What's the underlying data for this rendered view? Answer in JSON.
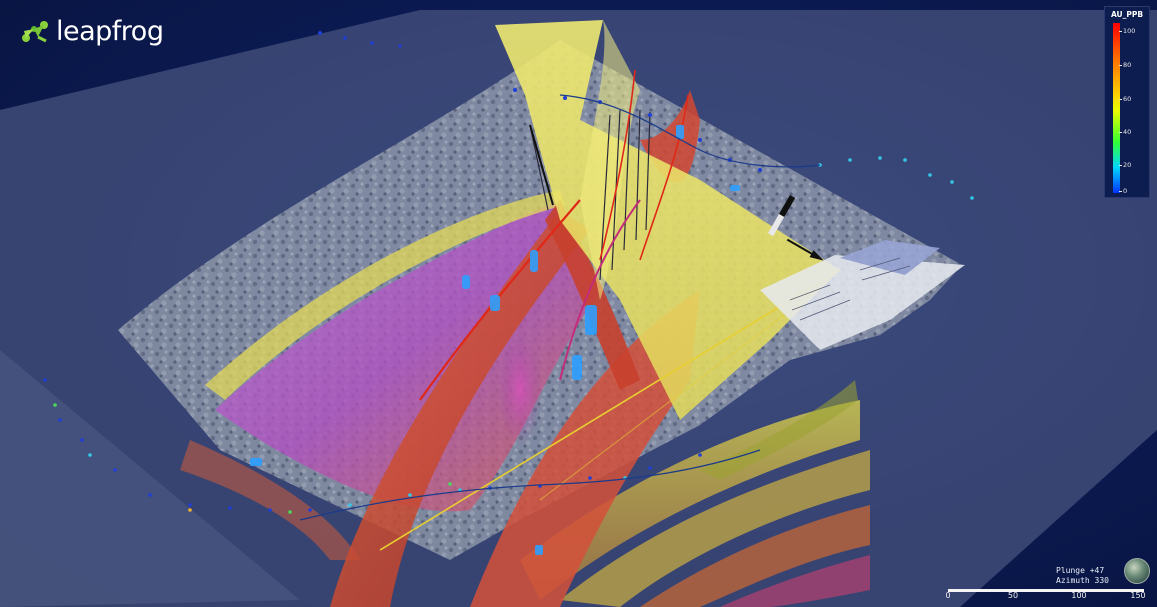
{
  "app": {
    "logo_text": "leapfrog"
  },
  "legend": {
    "title": "AU_PPB",
    "ticks": [
      "100",
      "80",
      "60",
      "40",
      "20",
      "0"
    ]
  },
  "view": {
    "plunge": "Plunge +47",
    "azimuth": "Azimuth 330"
  },
  "scale_bar": {
    "labels": [
      "0",
      "50",
      "100",
      "150"
    ]
  },
  "colors": {
    "background": "#0b1a52",
    "topo_surface": "#8d96a8",
    "fault_yellow": "#e6e15a",
    "fault_red": "#d24630",
    "vein_purple": "#a050c8",
    "drill_trace": "#2a5aa8"
  },
  "icons": [
    "leapfrog-logo-icon",
    "globe-orientation-icon",
    "north-arrow-icon"
  ]
}
